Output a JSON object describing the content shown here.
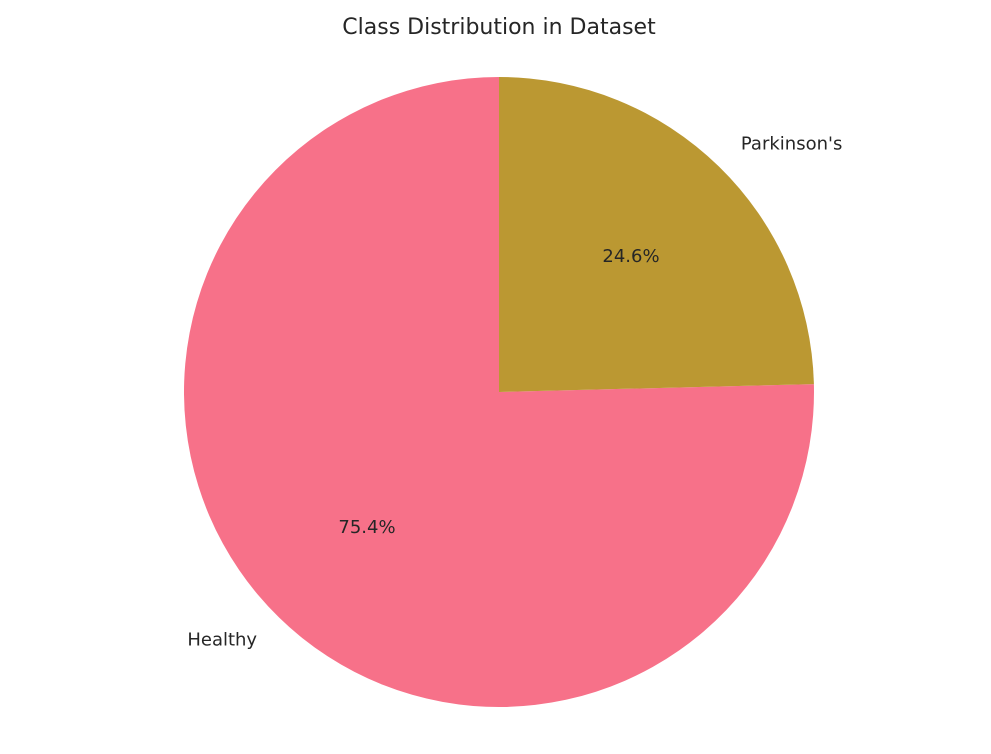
{
  "chart_data": {
    "type": "pie",
    "title": "Class Distribution in Dataset",
    "slices": [
      {
        "label": "Healthy",
        "value": 75.4,
        "pct_label": "75.4%",
        "color": "#f77189"
      },
      {
        "label": "Parkinson's",
        "value": 24.6,
        "pct_label": "24.6%",
        "color": "#bb9832"
      }
    ],
    "start_angle_deg": 90,
    "direction": "counterclockwise",
    "legend": "none"
  }
}
